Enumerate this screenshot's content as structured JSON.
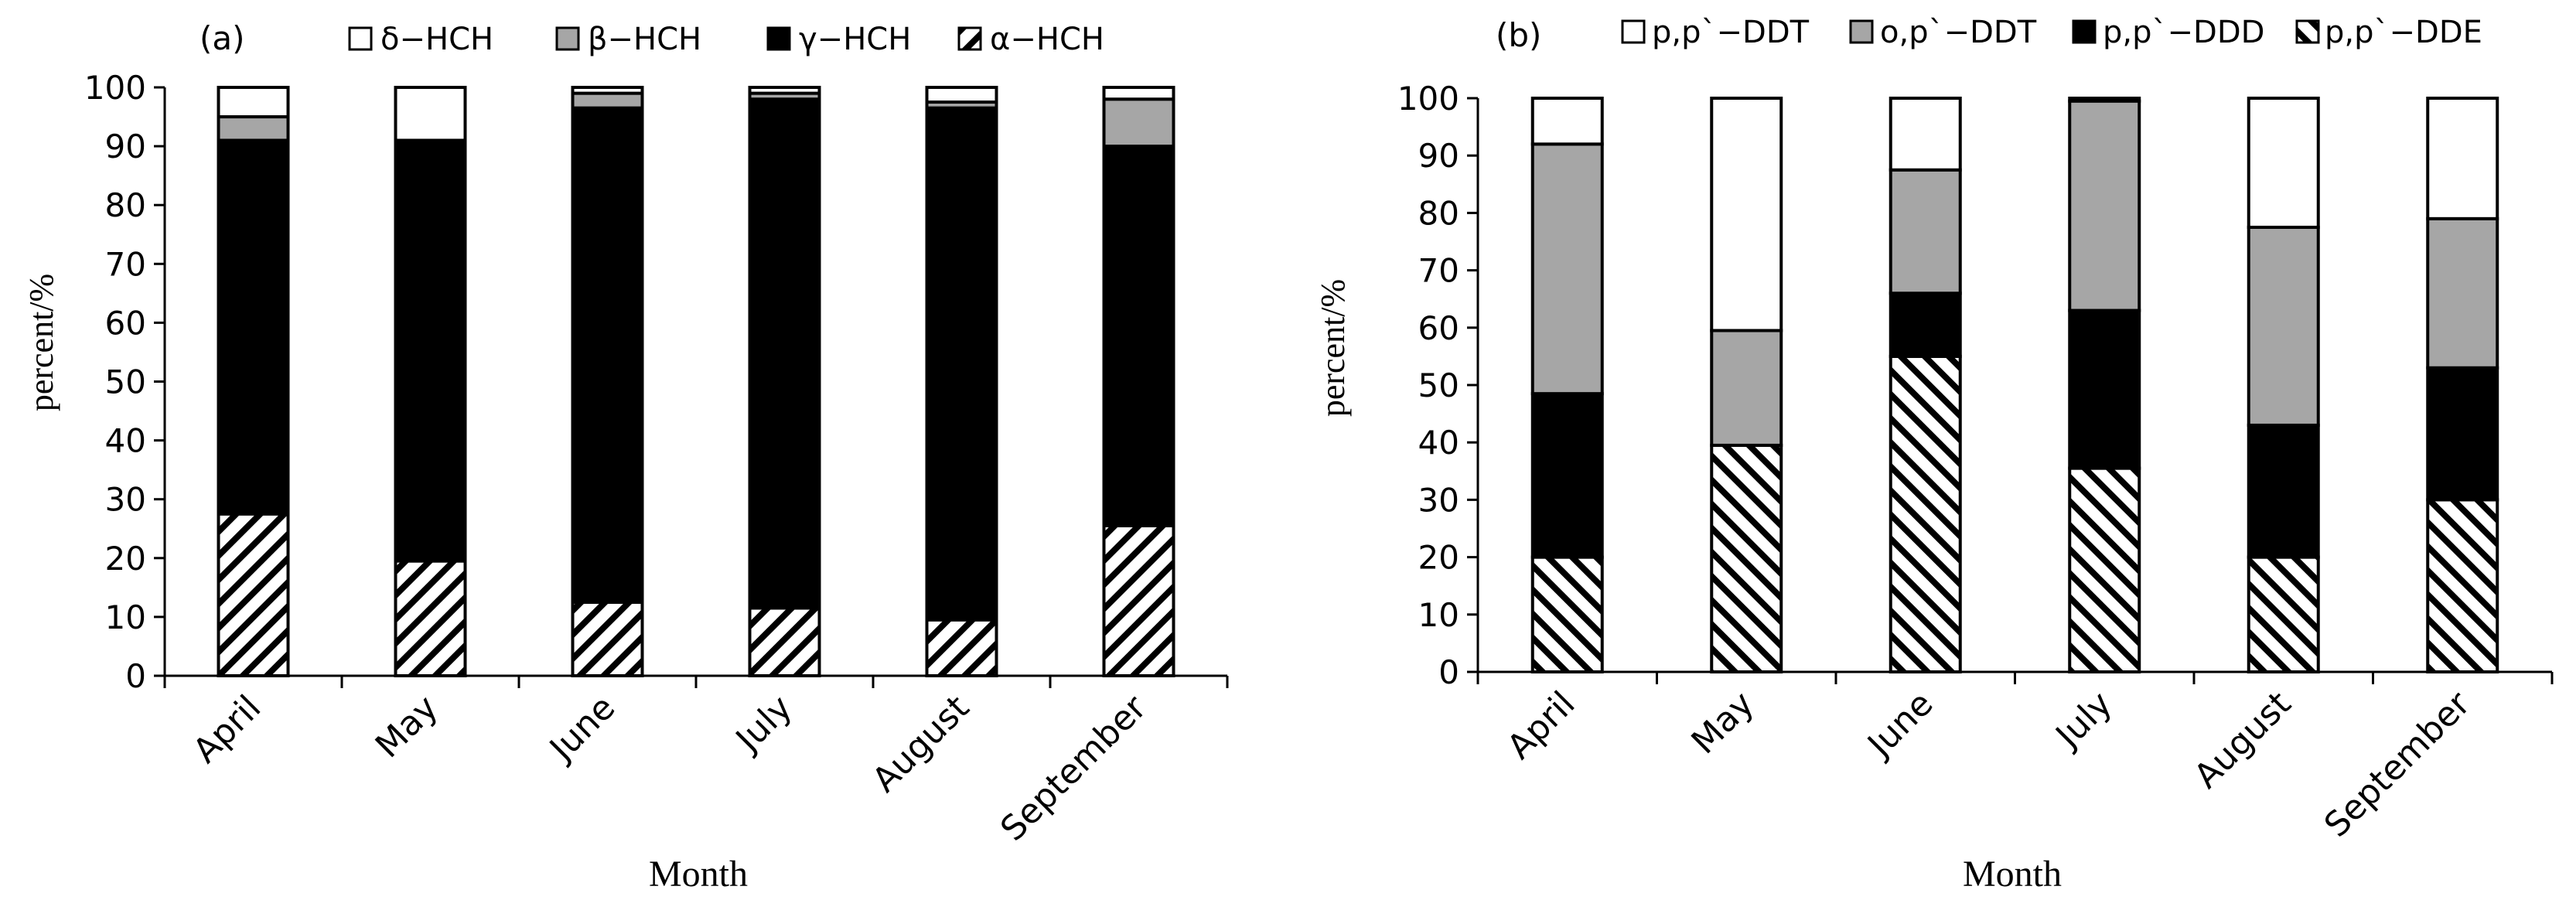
{
  "chart_data": [
    {
      "type": "bar",
      "stacked": true,
      "percent_stacked": true,
      "panel_label": "(a)",
      "title": "",
      "xlabel": "Month",
      "ylabel": "percent/%",
      "ylim": [
        0,
        100
      ],
      "yticks": [
        "0",
        "10",
        "20",
        "30",
        "40",
        "50",
        "60",
        "70",
        "80",
        "90",
        "100"
      ],
      "categories": [
        "April",
        "May",
        "June",
        "July",
        "August",
        "September"
      ],
      "series": [
        {
          "name": "α−HCH",
          "pattern": "forward-hatch",
          "values": [
            27.5,
            19.5,
            12.5,
            11.5,
            9.5,
            25.5
          ]
        },
        {
          "name": "γ−HCH",
          "pattern": "solid-black",
          "values": [
            63.5,
            71.5,
            84.0,
            86.5,
            87.0,
            64.5
          ]
        },
        {
          "name": "β−HCH",
          "pattern": "solid-gray",
          "values": [
            4.0,
            0.0,
            2.5,
            1.0,
            1.0,
            8.0
          ]
        },
        {
          "name": "δ−HCH",
          "pattern": "white",
          "values": [
            5.0,
            9.0,
            1.0,
            1.0,
            2.5,
            2.0
          ]
        }
      ],
      "legend_order": [
        "δ−HCH",
        "β−HCH",
        "γ−HCH",
        "α−HCH"
      ],
      "legend_position": "top",
      "grid": false
    },
    {
      "type": "bar",
      "stacked": true,
      "percent_stacked": true,
      "panel_label": "(b)",
      "title": "",
      "xlabel": "Month",
      "ylabel": "percent/%",
      "ylim": [
        0,
        100
      ],
      "yticks": [
        "0",
        "10",
        "20",
        "30",
        "40",
        "50",
        "60",
        "70",
        "80",
        "90",
        "100"
      ],
      "categories": [
        "April",
        "May",
        "June",
        "July",
        "August",
        "September"
      ],
      "series": [
        {
          "name": "p,p`−DDE",
          "pattern": "back-hatch",
          "values": [
            20.0,
            39.5,
            55.0,
            35.5,
            20.0,
            30.0
          ]
        },
        {
          "name": "p,p`−DDD",
          "pattern": "solid-black",
          "values": [
            28.5,
            0.0,
            11.0,
            27.5,
            23.0,
            23.0
          ]
        },
        {
          "name": "o,p`−DDT",
          "pattern": "solid-gray",
          "values": [
            43.5,
            20.0,
            21.5,
            36.5,
            34.5,
            26.0
          ]
        },
        {
          "name": "p,p`−DDT",
          "pattern": "white",
          "values": [
            8.0,
            40.5,
            12.5,
            0.5,
            22.5,
            21.0
          ]
        }
      ],
      "legend_order": [
        "p,p`−DDT",
        "o,p`−DDT",
        "p,p`−DDD",
        "p,p`−DDE"
      ],
      "legend_position": "top",
      "grid": false
    }
  ]
}
